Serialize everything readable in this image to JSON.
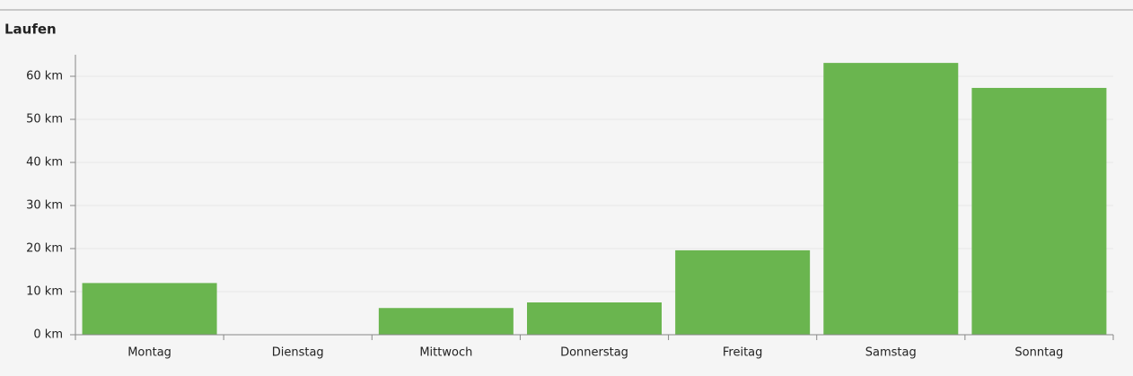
{
  "chart_data": {
    "type": "bar",
    "title": "Laufen",
    "categories": [
      "Montag",
      "Dienstag",
      "Mittwoch",
      "Donnerstag",
      "Freitag",
      "Samstag",
      "Sonntag"
    ],
    "values": [
      12,
      0,
      6.2,
      7.5,
      19.6,
      63.1,
      57.3
    ],
    "color": "#6ab54f",
    "ylim": [
      0,
      65
    ],
    "yticks": [
      {
        "value": 0,
        "label": "0 km"
      },
      {
        "value": 10,
        "label": "10 km"
      },
      {
        "value": 20,
        "label": "20 km"
      },
      {
        "value": 30,
        "label": "30 km"
      },
      {
        "value": 40,
        "label": "40 km"
      },
      {
        "value": 50,
        "label": "50 km"
      },
      {
        "value": 60,
        "label": "60 km"
      }
    ],
    "grid": true
  }
}
